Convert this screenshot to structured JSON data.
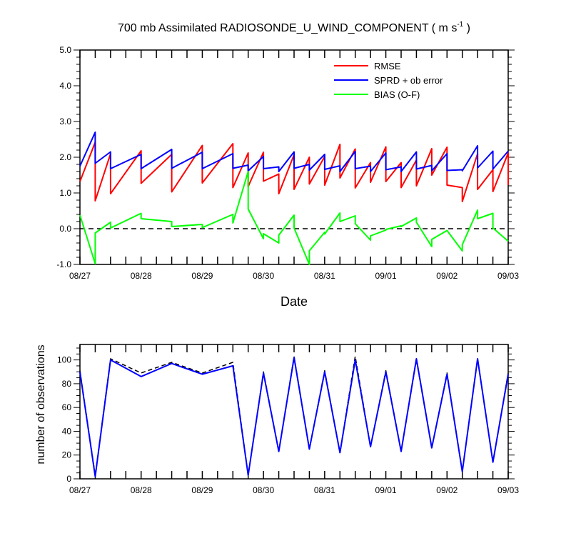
{
  "chart_data": [
    {
      "type": "line",
      "title": "700 mb Assimilated RADIOSONDE_U_WIND_COMPONENT ( m s",
      "title_superscript": "-1",
      "title_suffix": " )",
      "xlabel": "Date",
      "ylabel": "",
      "x_start": "08/27",
      "x_end": "09/03",
      "x_ticklabels": [
        "08/27",
        "08/28",
        "08/29",
        "08/30",
        "08/31",
        "09/01",
        "09/02",
        "09/03"
      ],
      "ylim": [
        -1.0,
        5.0
      ],
      "y_ticks": [
        -1.0,
        0.0,
        1.0,
        2.0,
        3.0,
        4.0,
        5.0
      ],
      "y_ticklabels": [
        "-1.0",
        "0.0",
        "1.0",
        "2.0",
        "3.0",
        "4.0",
        "5.0"
      ],
      "legend_position": "top-right",
      "reference_line": {
        "y": 0.0,
        "style": "dashed",
        "color": "#000000"
      },
      "series": [
        {
          "name": "RMSE",
          "color": "#ff0000",
          "points": [
            [
              0.0,
              1.32
            ],
            [
              0.25,
              2.42
            ],
            [
              0.25,
              0.78
            ],
            [
              0.5,
              2.1
            ],
            [
              0.5,
              0.98
            ],
            [
              1.0,
              2.18
            ],
            [
              1.0,
              1.27
            ],
            [
              1.5,
              2.08
            ],
            [
              1.5,
              1.03
            ],
            [
              2.0,
              2.33
            ],
            [
              2.0,
              1.28
            ],
            [
              2.5,
              2.38
            ],
            [
              2.5,
              1.15
            ],
            [
              2.75,
              2.12
            ],
            [
              2.75,
              1.18
            ],
            [
              3.0,
              2.14
            ],
            [
              3.0,
              1.33
            ],
            [
              3.25,
              1.53
            ],
            [
              3.25,
              0.98
            ],
            [
              3.5,
              2.07
            ],
            [
              3.5,
              1.1
            ],
            [
              3.75,
              2.0
            ],
            [
              3.75,
              1.25
            ],
            [
              4.0,
              2.02
            ],
            [
              4.0,
              1.22
            ],
            [
              4.25,
              2.36
            ],
            [
              4.25,
              1.42
            ],
            [
              4.5,
              2.23
            ],
            [
              4.5,
              1.14
            ],
            [
              4.75,
              1.85
            ],
            [
              4.75,
              1.3
            ],
            [
              5.0,
              2.29
            ],
            [
              5.0,
              1.32
            ],
            [
              5.25,
              1.85
            ],
            [
              5.25,
              1.15
            ],
            [
              5.5,
              1.92
            ],
            [
              5.5,
              1.2
            ],
            [
              5.75,
              2.24
            ],
            [
              5.75,
              1.5
            ],
            [
              6.0,
              2.28
            ],
            [
              6.0,
              1.22
            ],
            [
              6.25,
              1.15
            ],
            [
              6.25,
              0.76
            ],
            [
              6.5,
              2.1
            ],
            [
              6.5,
              1.1
            ],
            [
              6.75,
              1.65
            ],
            [
              6.75,
              1.04
            ],
            [
              7.0,
              2.12
            ],
            [
              7.0,
              1.22
            ]
          ]
        },
        {
          "name": "SPRD + ob error",
          "color": "#0000ff",
          "points": [
            [
              0.0,
              1.75
            ],
            [
              0.25,
              2.7
            ],
            [
              0.25,
              1.83
            ],
            [
              0.5,
              2.15
            ],
            [
              0.5,
              1.68
            ],
            [
              1.0,
              2.08
            ],
            [
              1.0,
              1.68
            ],
            [
              1.5,
              2.22
            ],
            [
              1.5,
              1.69
            ],
            [
              2.0,
              2.14
            ],
            [
              2.0,
              1.68
            ],
            [
              2.5,
              2.1
            ],
            [
              2.5,
              1.69
            ],
            [
              2.75,
              1.78
            ],
            [
              2.75,
              1.62
            ],
            [
              3.0,
              2.02
            ],
            [
              3.0,
              1.68
            ],
            [
              3.25,
              1.73
            ],
            [
              3.25,
              1.6
            ],
            [
              3.5,
              2.15
            ],
            [
              3.5,
              1.69
            ],
            [
              3.75,
              1.8
            ],
            [
              3.75,
              1.64
            ],
            [
              4.0,
              2.08
            ],
            [
              4.0,
              1.66
            ],
            [
              4.25,
              1.76
            ],
            [
              4.25,
              1.6
            ],
            [
              4.5,
              2.16
            ],
            [
              4.5,
              1.68
            ],
            [
              4.75,
              1.75
            ],
            [
              4.75,
              1.6
            ],
            [
              5.0,
              2.12
            ],
            [
              5.0,
              1.65
            ],
            [
              5.25,
              1.73
            ],
            [
              5.25,
              1.6
            ],
            [
              5.5,
              2.15
            ],
            [
              5.5,
              1.67
            ],
            [
              5.75,
              1.77
            ],
            [
              5.75,
              1.62
            ],
            [
              6.0,
              2.1
            ],
            [
              6.0,
              1.63
            ],
            [
              6.25,
              1.65
            ],
            [
              6.25,
              1.62
            ],
            [
              6.5,
              2.32
            ],
            [
              6.5,
              1.7
            ],
            [
              6.75,
              2.17
            ],
            [
              6.75,
              1.67
            ],
            [
              7.0,
              2.17
            ]
          ]
        },
        {
          "name": "BIAS (O-F)",
          "color": "#00ff00",
          "points": [
            [
              0.0,
              0.38
            ],
            [
              0.25,
              -0.98
            ],
            [
              0.25,
              -0.12
            ],
            [
              0.5,
              0.18
            ],
            [
              0.5,
              0.02
            ],
            [
              1.0,
              0.43
            ],
            [
              1.0,
              0.28
            ],
            [
              1.5,
              0.2
            ],
            [
              1.5,
              0.06
            ],
            [
              2.0,
              0.12
            ],
            [
              2.0,
              0.03
            ],
            [
              2.5,
              0.4
            ],
            [
              2.5,
              0.16
            ],
            [
              2.75,
              1.6
            ],
            [
              2.75,
              0.55
            ],
            [
              3.0,
              -0.28
            ],
            [
              3.0,
              -0.14
            ],
            [
              3.25,
              -0.4
            ],
            [
              3.25,
              -0.18
            ],
            [
              3.5,
              0.38
            ],
            [
              3.5,
              0.02
            ],
            [
              3.75,
              -1.0
            ],
            [
              3.75,
              -0.62
            ],
            [
              4.0,
              -0.1
            ],
            [
              4.0,
              -0.15
            ],
            [
              4.25,
              0.44
            ],
            [
              4.25,
              0.2
            ],
            [
              4.5,
              0.36
            ],
            [
              4.5,
              0.14
            ],
            [
              4.75,
              -0.32
            ],
            [
              4.75,
              -0.2
            ],
            [
              5.0,
              -0.04
            ],
            [
              5.0,
              -0.02
            ],
            [
              5.25,
              0.08
            ],
            [
              5.25,
              0.06
            ],
            [
              5.5,
              0.3
            ],
            [
              5.5,
              0.18
            ],
            [
              5.75,
              -0.5
            ],
            [
              5.75,
              -0.3
            ],
            [
              6.0,
              -0.05
            ],
            [
              6.25,
              -0.62
            ],
            [
              6.25,
              -0.45
            ],
            [
              6.5,
              0.52
            ],
            [
              6.5,
              0.28
            ],
            [
              6.75,
              0.43
            ],
            [
              6.75,
              0.02
            ],
            [
              7.0,
              -0.35
            ]
          ]
        }
      ]
    },
    {
      "type": "line",
      "title": "",
      "xlabel": "",
      "ylabel": "number of observations",
      "x_start": "08/27",
      "x_end": "09/03",
      "x_ticklabels": [
        "08/27",
        "08/28",
        "08/29",
        "08/30",
        "08/31",
        "09/01",
        "09/02",
        "09/03"
      ],
      "ylim": [
        0,
        113
      ],
      "y_ticks": [
        0,
        20,
        40,
        60,
        80,
        100
      ],
      "y_ticklabels": [
        "0",
        "20",
        "40",
        "60",
        "80",
        "100"
      ],
      "series": [
        {
          "style": "dashed",
          "color": "#000000",
          "points": [
            [
              0.0,
              91
            ],
            [
              0.25,
              3
            ],
            [
              0.5,
              101
            ],
            [
              1.0,
              89
            ],
            [
              1.5,
              98
            ],
            [
              2.0,
              89
            ],
            [
              2.5,
              98
            ],
            [
              2.75,
              3
            ],
            [
              3.0,
              90
            ],
            [
              3.25,
              23
            ],
            [
              3.5,
              103
            ],
            [
              3.75,
              25
            ],
            [
              4.0,
              91
            ],
            [
              4.25,
              22
            ],
            [
              4.5,
              103
            ],
            [
              4.75,
              27
            ],
            [
              5.0,
              91
            ],
            [
              5.25,
              23
            ],
            [
              5.5,
              100
            ],
            [
              5.75,
              26
            ],
            [
              6.0,
              89
            ],
            [
              6.25,
              6
            ],
            [
              6.5,
              101
            ],
            [
              6.75,
              14
            ],
            [
              7.0,
              89
            ]
          ]
        },
        {
          "style": "solid",
          "color": "#0000ff",
          "points": [
            [
              0.0,
              90
            ],
            [
              0.25,
              2
            ],
            [
              0.5,
              100
            ],
            [
              1.0,
              86
            ],
            [
              1.5,
              97
            ],
            [
              2.0,
              88
            ],
            [
              2.5,
              95
            ],
            [
              2.75,
              3
            ],
            [
              3.0,
              89
            ],
            [
              3.25,
              23
            ],
            [
              3.5,
              102
            ],
            [
              3.75,
              25
            ],
            [
              4.0,
              90
            ],
            [
              4.25,
              22
            ],
            [
              4.5,
              100
            ],
            [
              4.75,
              27
            ],
            [
              5.0,
              90
            ],
            [
              5.25,
              23
            ],
            [
              5.5,
              101
            ],
            [
              5.75,
              26
            ],
            [
              6.0,
              88
            ],
            [
              6.25,
              6
            ],
            [
              6.5,
              101
            ],
            [
              6.75,
              14
            ],
            [
              7.0,
              88
            ]
          ]
        }
      ]
    }
  ]
}
